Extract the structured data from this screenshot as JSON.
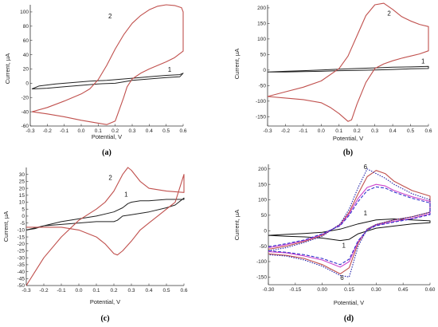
{
  "chart_data": [
    {
      "type": "line",
      "panel_label": "(a)",
      "xlabel": "Potential, V",
      "ylabel": "Current, µA",
      "xlim": [
        -0.3,
        0.6
      ],
      "ylim": [
        -60,
        110
      ],
      "xticks": [
        "-0.3",
        "-0.2",
        "-0.1",
        "0.0",
        "0.1",
        "0.2",
        "0.3",
        "0.4",
        "0.5",
        "0.6"
      ],
      "yticks": [
        "-60",
        "-40",
        "-20",
        "0",
        "20",
        "40",
        "60",
        "80",
        "100"
      ],
      "grid": false,
      "series": [
        {
          "label": "1",
          "color": "#222222",
          "x": [
            -0.29,
            -0.25,
            -0.15,
            -0.05,
            0.05,
            0.15,
            0.25,
            0.3,
            0.4,
            0.5,
            0.58,
            0.6,
            0.58,
            0.5,
            0.4,
            0.3,
            0.25,
            0.2,
            0.1,
            0.0,
            -0.1,
            -0.2,
            -0.29
          ],
          "y": [
            -8,
            -4,
            -1,
            1,
            3,
            4,
            6,
            7,
            9,
            11,
            12,
            14,
            9,
            8,
            6,
            4,
            2,
            0,
            -1,
            -3,
            -5,
            -7,
            -8
          ]
        },
        {
          "label": "2",
          "color": "#c0504d",
          "x": [
            -0.29,
            -0.2,
            -0.1,
            0.0,
            0.05,
            0.1,
            0.15,
            0.2,
            0.25,
            0.3,
            0.35,
            0.4,
            0.45,
            0.5,
            0.55,
            0.59,
            0.6,
            0.6,
            0.55,
            0.5,
            0.45,
            0.4,
            0.35,
            0.3,
            0.27,
            0.25,
            0.22,
            0.2,
            0.15,
            0.1,
            0.0,
            -0.1,
            -0.2,
            -0.29
          ],
          "y": [
            -40,
            -34,
            -25,
            -15,
            -8,
            5,
            25,
            48,
            68,
            84,
            95,
            103,
            108,
            110,
            109,
            106,
            100,
            45,
            36,
            30,
            25,
            20,
            14,
            6,
            -5,
            -20,
            -40,
            -53,
            -58,
            -56,
            -52,
            -47,
            -43,
            -40
          ]
        }
      ],
      "annotations": [
        {
          "text": "1",
          "x": 0.52,
          "y": 16
        },
        {
          "text": "2",
          "x": 0.17,
          "y": 91
        }
      ]
    },
    {
      "type": "line",
      "panel_label": "(b)",
      "xlabel": "Potential, V",
      "ylabel": "Current, µA",
      "xlim": [
        -0.3,
        0.6
      ],
      "ylim": [
        -180,
        210
      ],
      "xticks": [
        "-0.3",
        "-0.2",
        "-0.1",
        "0.0",
        "0.1",
        "0.2",
        "0.3",
        "0.4",
        "0.5",
        "0.6"
      ],
      "yticks": [
        "-150",
        "-100",
        "-50",
        "0",
        "50",
        "100",
        "150",
        "200"
      ],
      "grid": false,
      "series": [
        {
          "label": "1",
          "color": "#222222",
          "x": [
            -0.3,
            -0.2,
            -0.1,
            0.0,
            0.1,
            0.2,
            0.3,
            0.4,
            0.5,
            0.6,
            0.6,
            0.5,
            0.4,
            0.3,
            0.2,
            0.1,
            0.0,
            -0.1,
            -0.2,
            -0.3
          ],
          "y": [
            -6,
            -4,
            -2,
            0,
            3,
            5,
            7,
            9,
            10,
            12,
            5,
            4,
            2,
            0,
            -1,
            -2,
            -4,
            -5,
            -6,
            -6
          ]
        },
        {
          "label": "2",
          "color": "#c0504d",
          "x": [
            -0.3,
            -0.2,
            -0.1,
            0.0,
            0.1,
            0.15,
            0.2,
            0.25,
            0.3,
            0.35,
            0.4,
            0.45,
            0.5,
            0.55,
            0.6,
            0.6,
            0.55,
            0.5,
            0.45,
            0.4,
            0.35,
            0.3,
            0.25,
            0.2,
            0.17,
            0.15,
            0.1,
            0.05,
            0.0,
            -0.1,
            -0.2,
            -0.3
          ],
          "y": [
            -85,
            -70,
            -55,
            -35,
            5,
            45,
            110,
            175,
            210,
            215,
            195,
            172,
            158,
            147,
            140,
            62,
            52,
            45,
            38,
            30,
            20,
            5,
            -40,
            -110,
            -160,
            -165,
            -140,
            -120,
            -105,
            -95,
            -90,
            -85
          ]
        }
      ],
      "annotations": [
        {
          "text": "1",
          "x": 0.57,
          "y": 22
        },
        {
          "text": "2",
          "x": 0.38,
          "y": 175
        }
      ]
    },
    {
      "type": "line",
      "panel_label": "(c)",
      "xlabel": "Potential, V",
      "ylabel": "Current, µA",
      "xlim": [
        -0.3,
        0.6
      ],
      "ylim": [
        -50,
        35
      ],
      "xticks": [
        "-0.3",
        "-0.2",
        "-0.1",
        "0.0",
        "0.1",
        "0.2",
        "0.3",
        "0.4",
        "0.5",
        "0.6"
      ],
      "yticks": [
        "-50",
        "-45",
        "-40",
        "-35",
        "-30",
        "-25",
        "-20",
        "-15",
        "-10",
        "-5",
        "0",
        "5",
        "10",
        "15",
        "20",
        "25",
        "30"
      ],
      "grid": false,
      "series": [
        {
          "label": "1",
          "color": "#222222",
          "x": [
            -0.3,
            -0.25,
            -0.2,
            -0.1,
            0.0,
            0.1,
            0.2,
            0.25,
            0.28,
            0.3,
            0.35,
            0.4,
            0.5,
            0.6,
            0.6,
            0.55,
            0.5,
            0.4,
            0.3,
            0.25,
            0.22,
            0.2,
            0.1,
            0.0,
            -0.1,
            -0.2,
            -0.3
          ],
          "y": [
            -10,
            -9,
            -7,
            -4,
            -2,
            0,
            3,
            6,
            9,
            10,
            11,
            11,
            12,
            12,
            13,
            8,
            6,
            3,
            1,
            0,
            -3,
            -4,
            -4,
            -5,
            -6,
            -7,
            -10
          ]
        },
        {
          "label": "2",
          "color": "#c0504d",
          "x": [
            -0.3,
            -0.25,
            -0.2,
            -0.1,
            0.0,
            0.1,
            0.15,
            0.2,
            0.25,
            0.28,
            0.3,
            0.35,
            0.4,
            0.5,
            0.6,
            0.6,
            0.55,
            0.5,
            0.45,
            0.4,
            0.35,
            0.3,
            0.25,
            0.22,
            0.2,
            0.15,
            0.1,
            0.0,
            -0.1,
            -0.2,
            -0.3
          ],
          "y": [
            -50,
            -40,
            -30,
            -15,
            -3,
            5,
            10,
            18,
            30,
            35,
            33,
            25,
            20,
            18,
            17,
            30,
            10,
            5,
            0,
            -5,
            -10,
            -18,
            -25,
            -28,
            -27,
            -20,
            -15,
            -10,
            -8,
            -8,
            -8
          ]
        }
      ],
      "annotations": [
        {
          "text": "1",
          "x": 0.27,
          "y": 14
        },
        {
          "text": "2",
          "x": 0.18,
          "y": 26
        }
      ]
    },
    {
      "type": "line",
      "panel_label": "(d)",
      "xlabel": "Potential, V",
      "ylabel": "Current, µA",
      "xlim": [
        -0.3,
        0.6
      ],
      "ylim": [
        -175,
        215
      ],
      "xticks": [
        "-0.30",
        "-0.15",
        "0.00",
        "0.15",
        "0.30",
        "0.45",
        "0.60"
      ],
      "yticks": [
        "-150",
        "-100",
        "-50",
        "0",
        "50",
        "100",
        "150",
        "200"
      ],
      "grid": false,
      "series": [
        {
          "label": "1",
          "color": "#111111",
          "x": [
            -0.3,
            -0.2,
            -0.1,
            0.0,
            0.1,
            0.2,
            0.3,
            0.4,
            0.5,
            0.6,
            0.6,
            0.5,
            0.4,
            0.3,
            0.2,
            0.15,
            0.1,
            0.0,
            -0.1,
            -0.2,
            -0.3
          ],
          "y": [
            -15,
            -12,
            -9,
            -5,
            5,
            22,
            35,
            38,
            35,
            32,
            26,
            22,
            15,
            8,
            -10,
            -28,
            -32,
            -24,
            -20,
            -18,
            -15
          ]
        },
        {
          "label": "",
          "color": "#c0504d",
          "x": [
            -0.3,
            -0.2,
            -0.1,
            0.0,
            0.1,
            0.15,
            0.2,
            0.25,
            0.3,
            0.35,
            0.4,
            0.5,
            0.6,
            0.6,
            0.5,
            0.4,
            0.3,
            0.25,
            0.2,
            0.15,
            0.1,
            0.0,
            -0.1,
            -0.2,
            -0.3
          ],
          "y": [
            -60,
            -50,
            -35,
            -15,
            20,
            60,
            120,
            175,
            195,
            185,
            160,
            130,
            112,
            60,
            45,
            35,
            20,
            5,
            -40,
            -120,
            -140,
            -110,
            -90,
            -80,
            -75
          ]
        },
        {
          "label": "",
          "color": "#cc44cc",
          "x": [
            -0.3,
            -0.2,
            -0.1,
            0.0,
            0.1,
            0.15,
            0.2,
            0.25,
            0.3,
            0.35,
            0.4,
            0.5,
            0.6,
            0.6,
            0.5,
            0.4,
            0.3,
            0.25,
            0.2,
            0.15,
            0.1,
            0.0,
            -0.1,
            -0.2,
            -0.3
          ],
          "y": [
            -55,
            -45,
            -32,
            -12,
            18,
            55,
            105,
            140,
            150,
            145,
            130,
            110,
            95,
            55,
            40,
            30,
            18,
            3,
            -35,
            -100,
            -118,
            -95,
            -82,
            -72,
            -68
          ]
        },
        {
          "label": "",
          "color": "#3333cc",
          "x": [
            -0.3,
            -0.2,
            -0.1,
            0.0,
            0.1,
            0.15,
            0.2,
            0.25,
            0.3,
            0.35,
            0.4,
            0.5,
            0.6,
            0.6,
            0.5,
            0.4,
            0.3,
            0.25,
            0.2,
            0.15,
            0.1,
            0.0,
            -0.1,
            -0.2,
            -0.3
          ],
          "y": [
            -52,
            -42,
            -30,
            -10,
            16,
            50,
            95,
            130,
            142,
            138,
            125,
            105,
            90,
            52,
            38,
            28,
            16,
            2,
            -32,
            -92,
            -110,
            -90,
            -78,
            -70,
            -65
          ]
        },
        {
          "label": "6",
          "color": "#2222aa",
          "x": [
            -0.3,
            -0.2,
            -0.1,
            0.0,
            0.1,
            0.15,
            0.2,
            0.25,
            0.3,
            0.35,
            0.4,
            0.5,
            0.6,
            0.6,
            0.5,
            0.4,
            0.3,
            0.25,
            0.2,
            0.15,
            0.1,
            0.0,
            -0.1,
            -0.2,
            -0.3
          ],
          "y": [
            -65,
            -55,
            -38,
            -18,
            22,
            70,
            140,
            200,
            185,
            170,
            150,
            120,
            100,
            60,
            45,
            35,
            20,
            5,
            -50,
            -150,
            -145,
            -115,
            -95,
            -82,
            -78
          ]
        }
      ],
      "annotations": [
        {
          "text": "6",
          "x": 0.24,
          "y": 200
        },
        {
          "text": "1",
          "x": 0.24,
          "y": 50
        },
        {
          "text": "1",
          "x": 0.12,
          "y": -55
        },
        {
          "text": "6",
          "x": 0.11,
          "y": -160
        }
      ]
    }
  ],
  "colors": {
    "axis": "#333333",
    "curve1": "#222222",
    "curve2": "#c0504d",
    "noise": "#7ab8e8"
  }
}
